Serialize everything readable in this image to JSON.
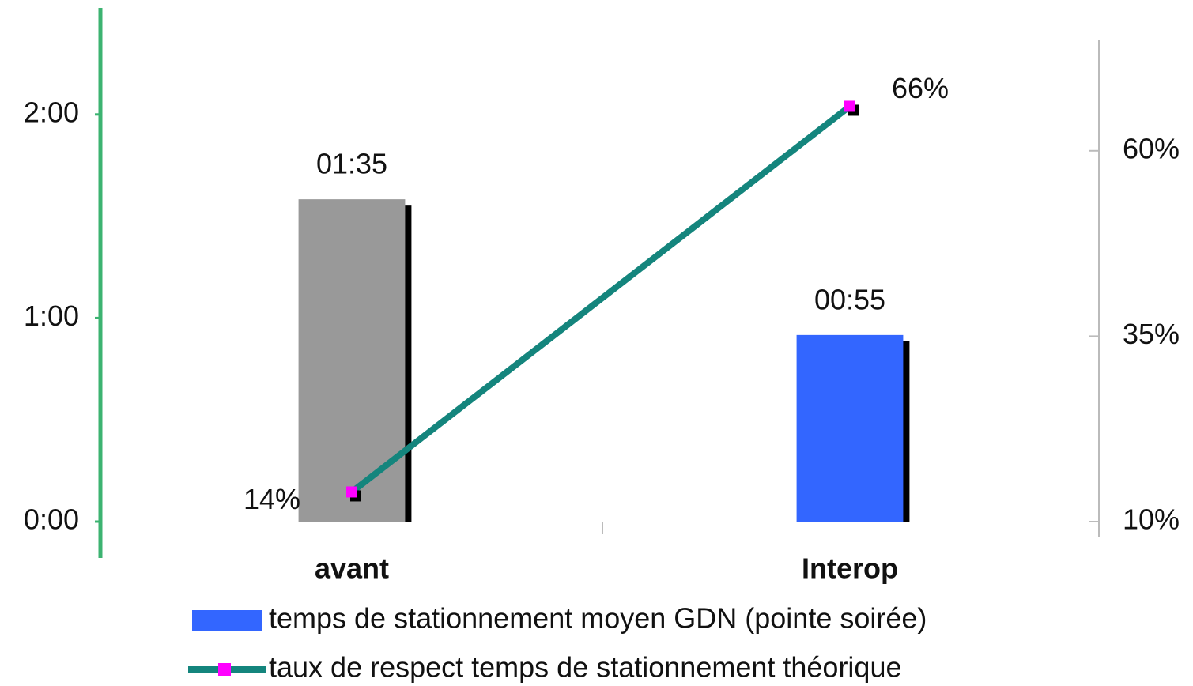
{
  "chart_data": {
    "type": "bar_line",
    "categories": [
      "avant",
      "Interop"
    ],
    "series": [
      {
        "name": "temps de stationnement moyen GDN (pointe soirée)",
        "type": "bar",
        "color": "#3366ff",
        "colors": [
          "#999999",
          "#3366ff"
        ],
        "values": [
          1.5833,
          0.9167
        ],
        "value_labels": [
          "01:35",
          "00:55"
        ]
      },
      {
        "name": "taux de respect temps de stationnement théorique",
        "type": "line",
        "axis": "y2",
        "color": "#14857d",
        "marker_color": "#ff00ff",
        "values": [
          14,
          66
        ],
        "value_labels": [
          "14%",
          "66%"
        ]
      }
    ],
    "ylim": [
      0,
      2.5
    ],
    "yticks": [
      {
        "value": 0,
        "label": "0:00"
      },
      {
        "value": 1,
        "label": "1:00"
      },
      {
        "value": 2,
        "label": "2:00"
      }
    ],
    "y2lim": [
      10,
      75
    ],
    "y2ticks": [
      {
        "value": 10,
        "label": "10%"
      },
      {
        "value": 35,
        "label": "35%"
      },
      {
        "value": 60,
        "label": "60%"
      }
    ]
  }
}
